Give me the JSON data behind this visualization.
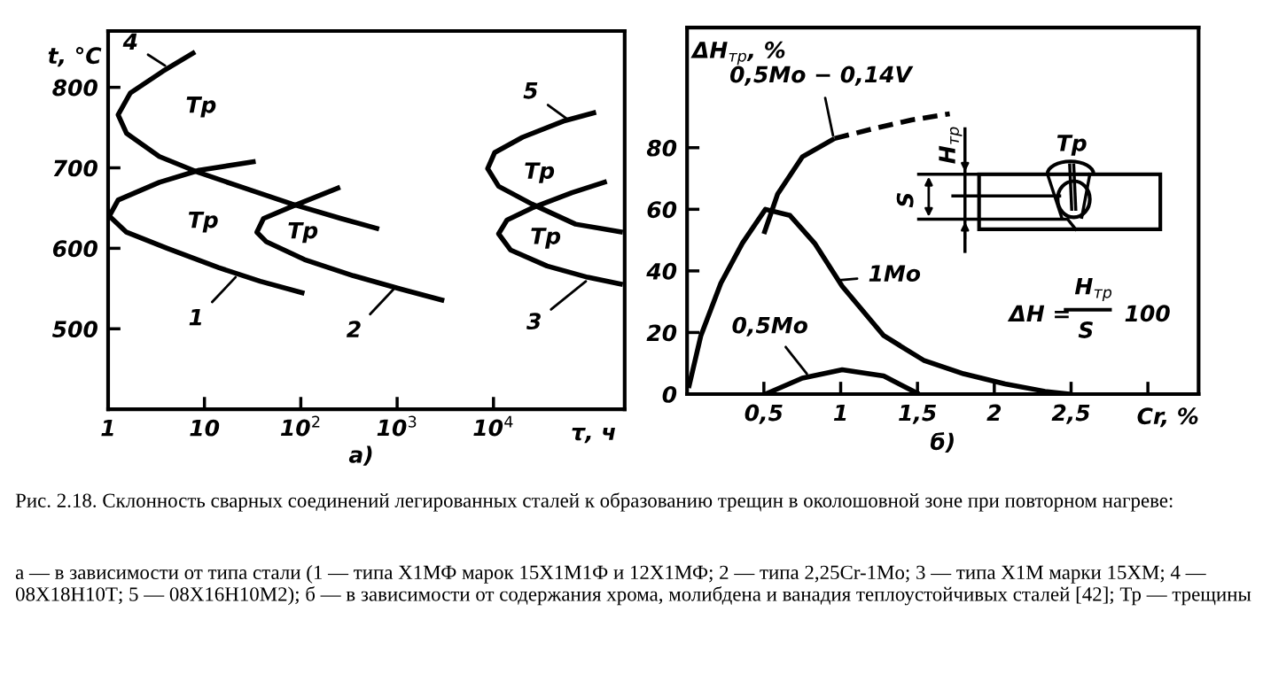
{
  "chart_data": [
    {
      "type": "line",
      "log": "x",
      "xlabel": "τ, ч",
      "ylabel": "t, °C",
      "xlim": [
        1,
        230000
      ],
      "ylim": [
        400,
        870
      ],
      "xticks": [
        1,
        10,
        {
          "value": 100,
          "label": "10$^{2}$"
        },
        {
          "value": 1000,
          "label": "10$^{3}$"
        },
        {
          "value": 10000,
          "label": "10$^{4}$"
        }
      ],
      "yticks": [
        500,
        600,
        700,
        800
      ],
      "series": [
        {
          "color": "#000000",
          "x": [
            8,
            3.7,
            1.7,
            1.27,
            1.55,
            3.4,
            8.8,
            23,
            81,
            262,
            650
          ],
          "values": [
            844,
            820,
            793,
            766,
            743,
            714,
            694,
            677,
            655,
            637,
            624
          ]
        },
        {
          "color": "#000000",
          "x": [
            34,
            8.8,
            3.4,
            1.27,
            1.03,
            1.55,
            4.1,
            14,
            38,
            109
          ],
          "values": [
            708,
            697,
            682,
            660,
            640,
            620,
            600,
            576,
            559,
            544
          ]
        },
        {
          "color": "#000000",
          "x": [
            256,
            81,
            41,
            35,
            44,
            109,
            350,
            1120,
            3080
          ],
          "values": [
            676,
            652,
            637,
            620,
            608,
            586,
            566,
            549,
            535
          ]
        },
        {
          "color": "#000000",
          "x": [
            116000,
            53000,
            20000,
            10300,
            8700,
            11300,
            25000,
            71000,
            220000
          ],
          "values": [
            769,
            758,
            738,
            719,
            699,
            677,
            655,
            630,
            620
          ]
        },
        {
          "color": "#000000",
          "x": [
            150000,
            65000,
            25000,
            13800,
            11300,
            15000,
            36000,
            95000,
            220000
          ],
          "values": [
            683,
            669,
            650,
            635,
            618,
            598,
            578,
            564,
            555
          ]
        }
      ],
      "annotations": [
        {
          "text": "4",
          "x": 3.9,
          "y": 827
        },
        {
          "text": "5",
          "x": 59000,
          "y": 760
        },
        {
          "text": "1",
          "x": 21,
          "y": 564
        },
        {
          "text": "2",
          "x": 915,
          "y": 549
        },
        {
          "text": "3",
          "x": 91000,
          "y": 559
        },
        "Тр",
        "Тр",
        "Тр",
        "Тр",
        "Тр",
        "а)",
        "Рис. 2.18. Склонность сварных соединений легированных сталей к образованию трещин в околошовной зоне при повторном нагреве:",
        "а — в зависимости от типа стали (1 — типа Х1МФ марок 15Х1М1Ф и 12Х1МФ; 2 — типа 2,25Cr-1Mo; 3 — типа Х1М марки 15ХМ; 4 — 08Х18Н10Т; 5 — 08Х16Н10М2); б — в зависимости от содержания хрома, молибдена и ванадия теплоустойчивых сталей [42]; Тр — трещины"
      ]
    },
    {
      "type": "line",
      "xlabel": "Cr, %",
      "ylabel": "ΔH$_{тр}$, %",
      "xlim": [
        0,
        3.33
      ],
      "ylim": [
        0,
        119
      ],
      "xticks": [
        {
          "value": 0.5,
          "label": "0,5"
        },
        1,
        {
          "value": 1.5,
          "label": "1,5"
        },
        2,
        {
          "value": 2.5,
          "label": "2,5"
        },
        {
          "value": 3,
          "label": null
        }
      ],
      "yticks": [
        0,
        20,
        40,
        60,
        80
      ],
      "series": [
        {
          "color": "#000000",
          "x": [
            0.01,
            0.09,
            0.22,
            0.36,
            0.51,
            0.67,
            0.83,
            1.01,
            1.28,
            1.54,
            1.8,
            2.07,
            2.33,
            2.49
          ],
          "values": [
            2,
            19,
            36,
            49,
            60,
            58,
            49,
            35,
            19,
            11,
            6.6,
            3.3,
            0.9,
            0
          ]
        },
        {
          "color": "#000000",
          "x": [
            0.51,
            0.75,
            1.01,
            1.28,
            1.51
          ],
          "values": [
            0,
            5.2,
            7.9,
            5.9,
            0
          ]
        },
        {
          "color": "#000000",
          "x": [
            0.5,
            0.59,
            0.75,
            0.96
          ],
          "values": [
            52,
            65,
            77,
            83
          ]
        },
        {
          "color": "#000000",
          "line_style": "dashed",
          "x": [
            0.96,
            1.2,
            1.46,
            1.71
          ],
          "values": [
            83,
            86,
            89,
            91
          ]
        }
      ],
      "annotations": [
        {
          "text": "1Mo",
          "x": 0.99,
          "y": 37
        },
        {
          "text": "0,5Mo",
          "x": 0.78,
          "y": 6.6
        },
        {
          "text": "0,5Mo − 0,14V",
          "x": 0.95,
          "y": 84
        },
        "б)",
        "ΔH =",
        "H$_{тр}$",
        "S",
        "100",
        "H$_{тр}$",
        "S",
        "Тр"
      ]
    }
  ]
}
